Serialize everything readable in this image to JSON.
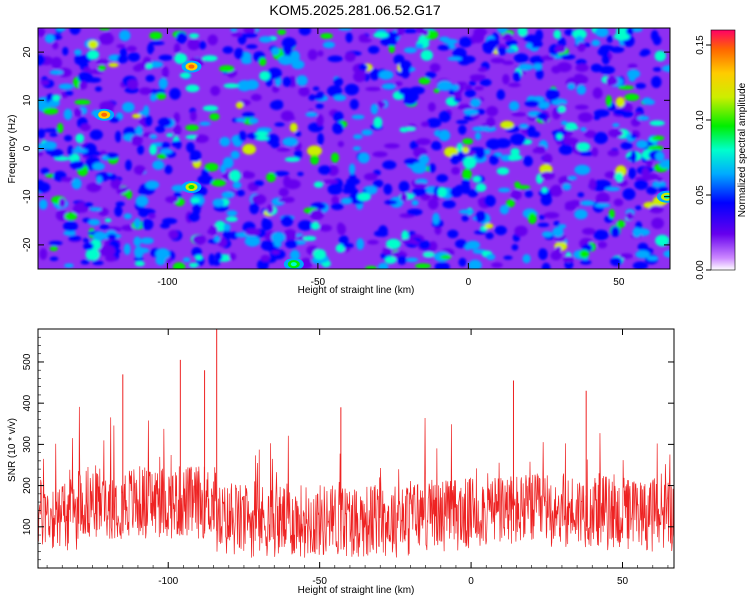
{
  "title": "KOM5.2025.281.06.52.G17",
  "chart_data": [
    {
      "type": "heatmap",
      "xlabel": "Height of straight line (km)",
      "ylabel": "Frequency (Hz)",
      "xlim": [
        -143,
        67
      ],
      "ylim": [
        -25,
        25
      ],
      "xticks": [
        -100,
        -50,
        0,
        50
      ],
      "yticks": [
        -20,
        -10,
        0,
        10,
        20
      ],
      "colorbar": {
        "label": "Normalized spectral amplitude",
        "range": [
          0.0,
          0.16
        ],
        "ticks": [
          "0.00",
          "0.05",
          "0.10",
          "0.15"
        ],
        "tick_values": [
          0.0,
          0.05,
          0.1,
          0.15
        ]
      },
      "peaks": [
        {
          "x": -121,
          "y": 7,
          "value": 0.14
        },
        {
          "x": -92,
          "y": 17,
          "value": 0.14
        },
        {
          "x": -92,
          "y": -8,
          "value": 0.09
        },
        {
          "x": 66,
          "y": -10,
          "value": 0.08
        },
        {
          "x": -58,
          "y": -24,
          "value": 0.07
        }
      ],
      "background_level": 0.02
    },
    {
      "type": "line",
      "xlabel": "Height of straight line (km)",
      "ylabel": "SNR (10 * v/v)",
      "xlim": [
        -143,
        67
      ],
      "ylim": [
        0,
        580
      ],
      "xticks": [
        -100,
        -50,
        0,
        50
      ],
      "yticks": [
        100,
        200,
        300,
        400,
        500
      ],
      "color": "#ee2222",
      "series": [
        {
          "name": "SNR",
          "peaks": [
            {
              "x": -84,
              "y": 580
            },
            {
              "x": -115,
              "y": 470
            },
            {
              "x": -96,
              "y": 505
            },
            {
              "x": -88,
              "y": 480
            },
            {
              "x": 14,
              "y": 455
            },
            {
              "x": 38,
              "y": 430
            },
            {
              "x": -43,
              "y": 390
            }
          ],
          "baseline_level": 130
        }
      ]
    }
  ]
}
